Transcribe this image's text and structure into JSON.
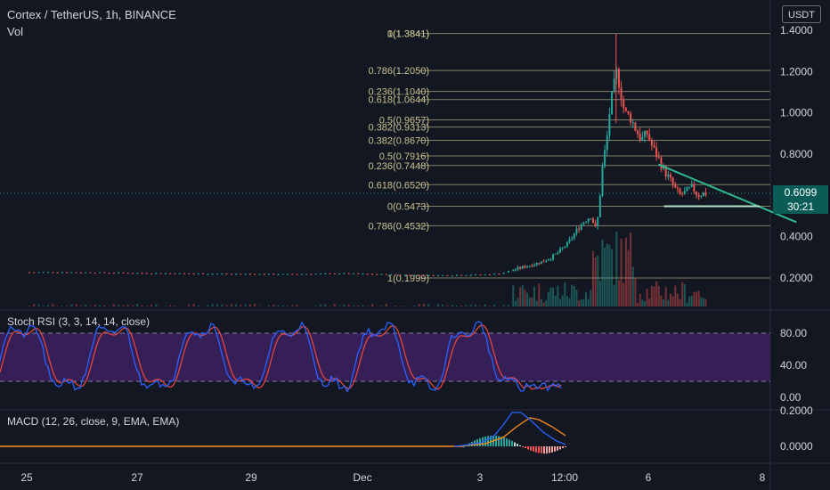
{
  "header": {
    "symbol_line": "Cortex / TetherUS, 1h, BINANCE",
    "vol_label": "Vol",
    "currency": "USDT"
  },
  "price_tag": {
    "price": "0.6099",
    "countdown": "30:21"
  },
  "colors": {
    "background": "#131722",
    "up": "#26a69a",
    "down": "#ef5350",
    "fib": "#a8a27a",
    "trendline": "#30b78d",
    "rsi_k": "#2962ff",
    "rsi_d": "#e0463b",
    "rsi_band": "#3b1f5c",
    "macd_line": "#2962ff",
    "macd_signal": "#ff8c1a"
  },
  "chart_data": [
    {
      "type": "candlestick",
      "title": "Cortex / TetherUS, 1h, BINANCE",
      "y_axis": {
        "min": 0.1,
        "max": 1.42,
        "ticks": [
          "1.4000",
          "1.2000",
          "1.0000",
          "0.8000",
          "0.6000",
          "0.4000",
          "0.2000"
        ]
      },
      "x_axis": {
        "ticks": [
          "25",
          "27",
          "29",
          "Dec",
          "3",
          "12:00",
          "6",
          "8"
        ]
      },
      "fib_levels": [
        {
          "label": "0(1.3841)",
          "value": 1.3841
        },
        {
          "label": "1(1.3841)",
          "value": 1.3841
        },
        {
          "label": "0.786(1.2050)",
          "value": 1.205
        },
        {
          "label": "0.236(1.1040)",
          "value": 1.104
        },
        {
          "label": "0.618(1.0644)",
          "value": 1.0644
        },
        {
          "label": "0.5(0.9657)",
          "value": 0.9657
        },
        {
          "label": "0.382(0.9313)",
          "value": 0.9313
        },
        {
          "label": "0.382(0.8670)",
          "value": 0.867
        },
        {
          "label": "0.5(0.7916)",
          "value": 0.7916
        },
        {
          "label": "0.236(0.7448)",
          "value": 0.7448
        },
        {
          "label": "0.618(0.6520)",
          "value": 0.652
        },
        {
          "label": "0(0.5473)",
          "value": 0.5473
        },
        {
          "label": "0.786(0.4532)",
          "value": 0.4532
        },
        {
          "label": "1(0.1999)",
          "value": 0.1999
        }
      ],
      "price_series": [
        [
          0,
          0.228
        ],
        [
          1,
          0.228
        ],
        [
          2,
          0.225
        ],
        [
          3,
          0.222
        ],
        [
          4,
          0.22
        ],
        [
          5,
          0.218
        ],
        [
          6,
          0.222
        ],
        [
          7,
          0.215
        ],
        [
          7.5,
          0.212
        ],
        [
          8,
          0.214
        ],
        [
          8.5,
          0.216
        ],
        [
          8.8,
          0.222
        ],
        [
          9.1,
          0.245
        ],
        [
          9.3,
          0.26
        ],
        [
          9.5,
          0.275
        ],
        [
          9.7,
          0.3
        ],
        [
          9.85,
          0.33
        ],
        [
          10,
          0.37
        ],
        [
          10.1,
          0.41
        ],
        [
          10.2,
          0.45
        ],
        [
          10.3,
          0.48
        ],
        [
          10.4,
          0.5
        ],
        [
          10.5,
          0.43
        ],
        [
          10.55,
          0.55
        ],
        [
          10.6,
          0.72
        ],
        [
          10.7,
          0.9
        ],
        [
          10.75,
          1.05
        ],
        [
          10.8,
          1.1
        ],
        [
          10.85,
          1.2
        ],
        [
          10.9,
          1.15
        ],
        [
          11,
          1.0
        ],
        [
          11.1,
          0.98
        ],
        [
          11.2,
          0.92
        ],
        [
          11.3,
          0.87
        ],
        [
          11.4,
          0.9
        ],
        [
          11.5,
          0.83
        ],
        [
          11.6,
          0.78
        ],
        [
          11.7,
          0.72
        ],
        [
          11.8,
          0.68
        ],
        [
          11.9,
          0.63
        ],
        [
          12,
          0.6
        ],
        [
          12.1,
          0.62
        ],
        [
          12.2,
          0.64
        ],
        [
          12.3,
          0.6
        ],
        [
          12.4,
          0.61
        ]
      ],
      "trendline": {
        "from": [
          11.6,
          0.75
        ],
        "to": [
          14.05,
          0.47
        ]
      },
      "support_line": {
        "from": [
          11.7,
          0.5473
        ],
        "to": [
          13.4,
          0.5473
        ]
      }
    },
    {
      "type": "line",
      "title": "Stoch RSI (3, 3, 14, 14, close)",
      "y_axis": {
        "min": 0,
        "max": 100,
        "ticks": [
          "80.00",
          "40.00",
          "0.00"
        ]
      },
      "bands": [
        20,
        80
      ]
    },
    {
      "type": "line",
      "title": "MACD (12, 26, close, 9, EMA, EMA)",
      "y_axis": {
        "min": -0.05,
        "max": 0.22,
        "ticks": [
          "0.2000",
          "0.0000"
        ]
      }
    }
  ]
}
